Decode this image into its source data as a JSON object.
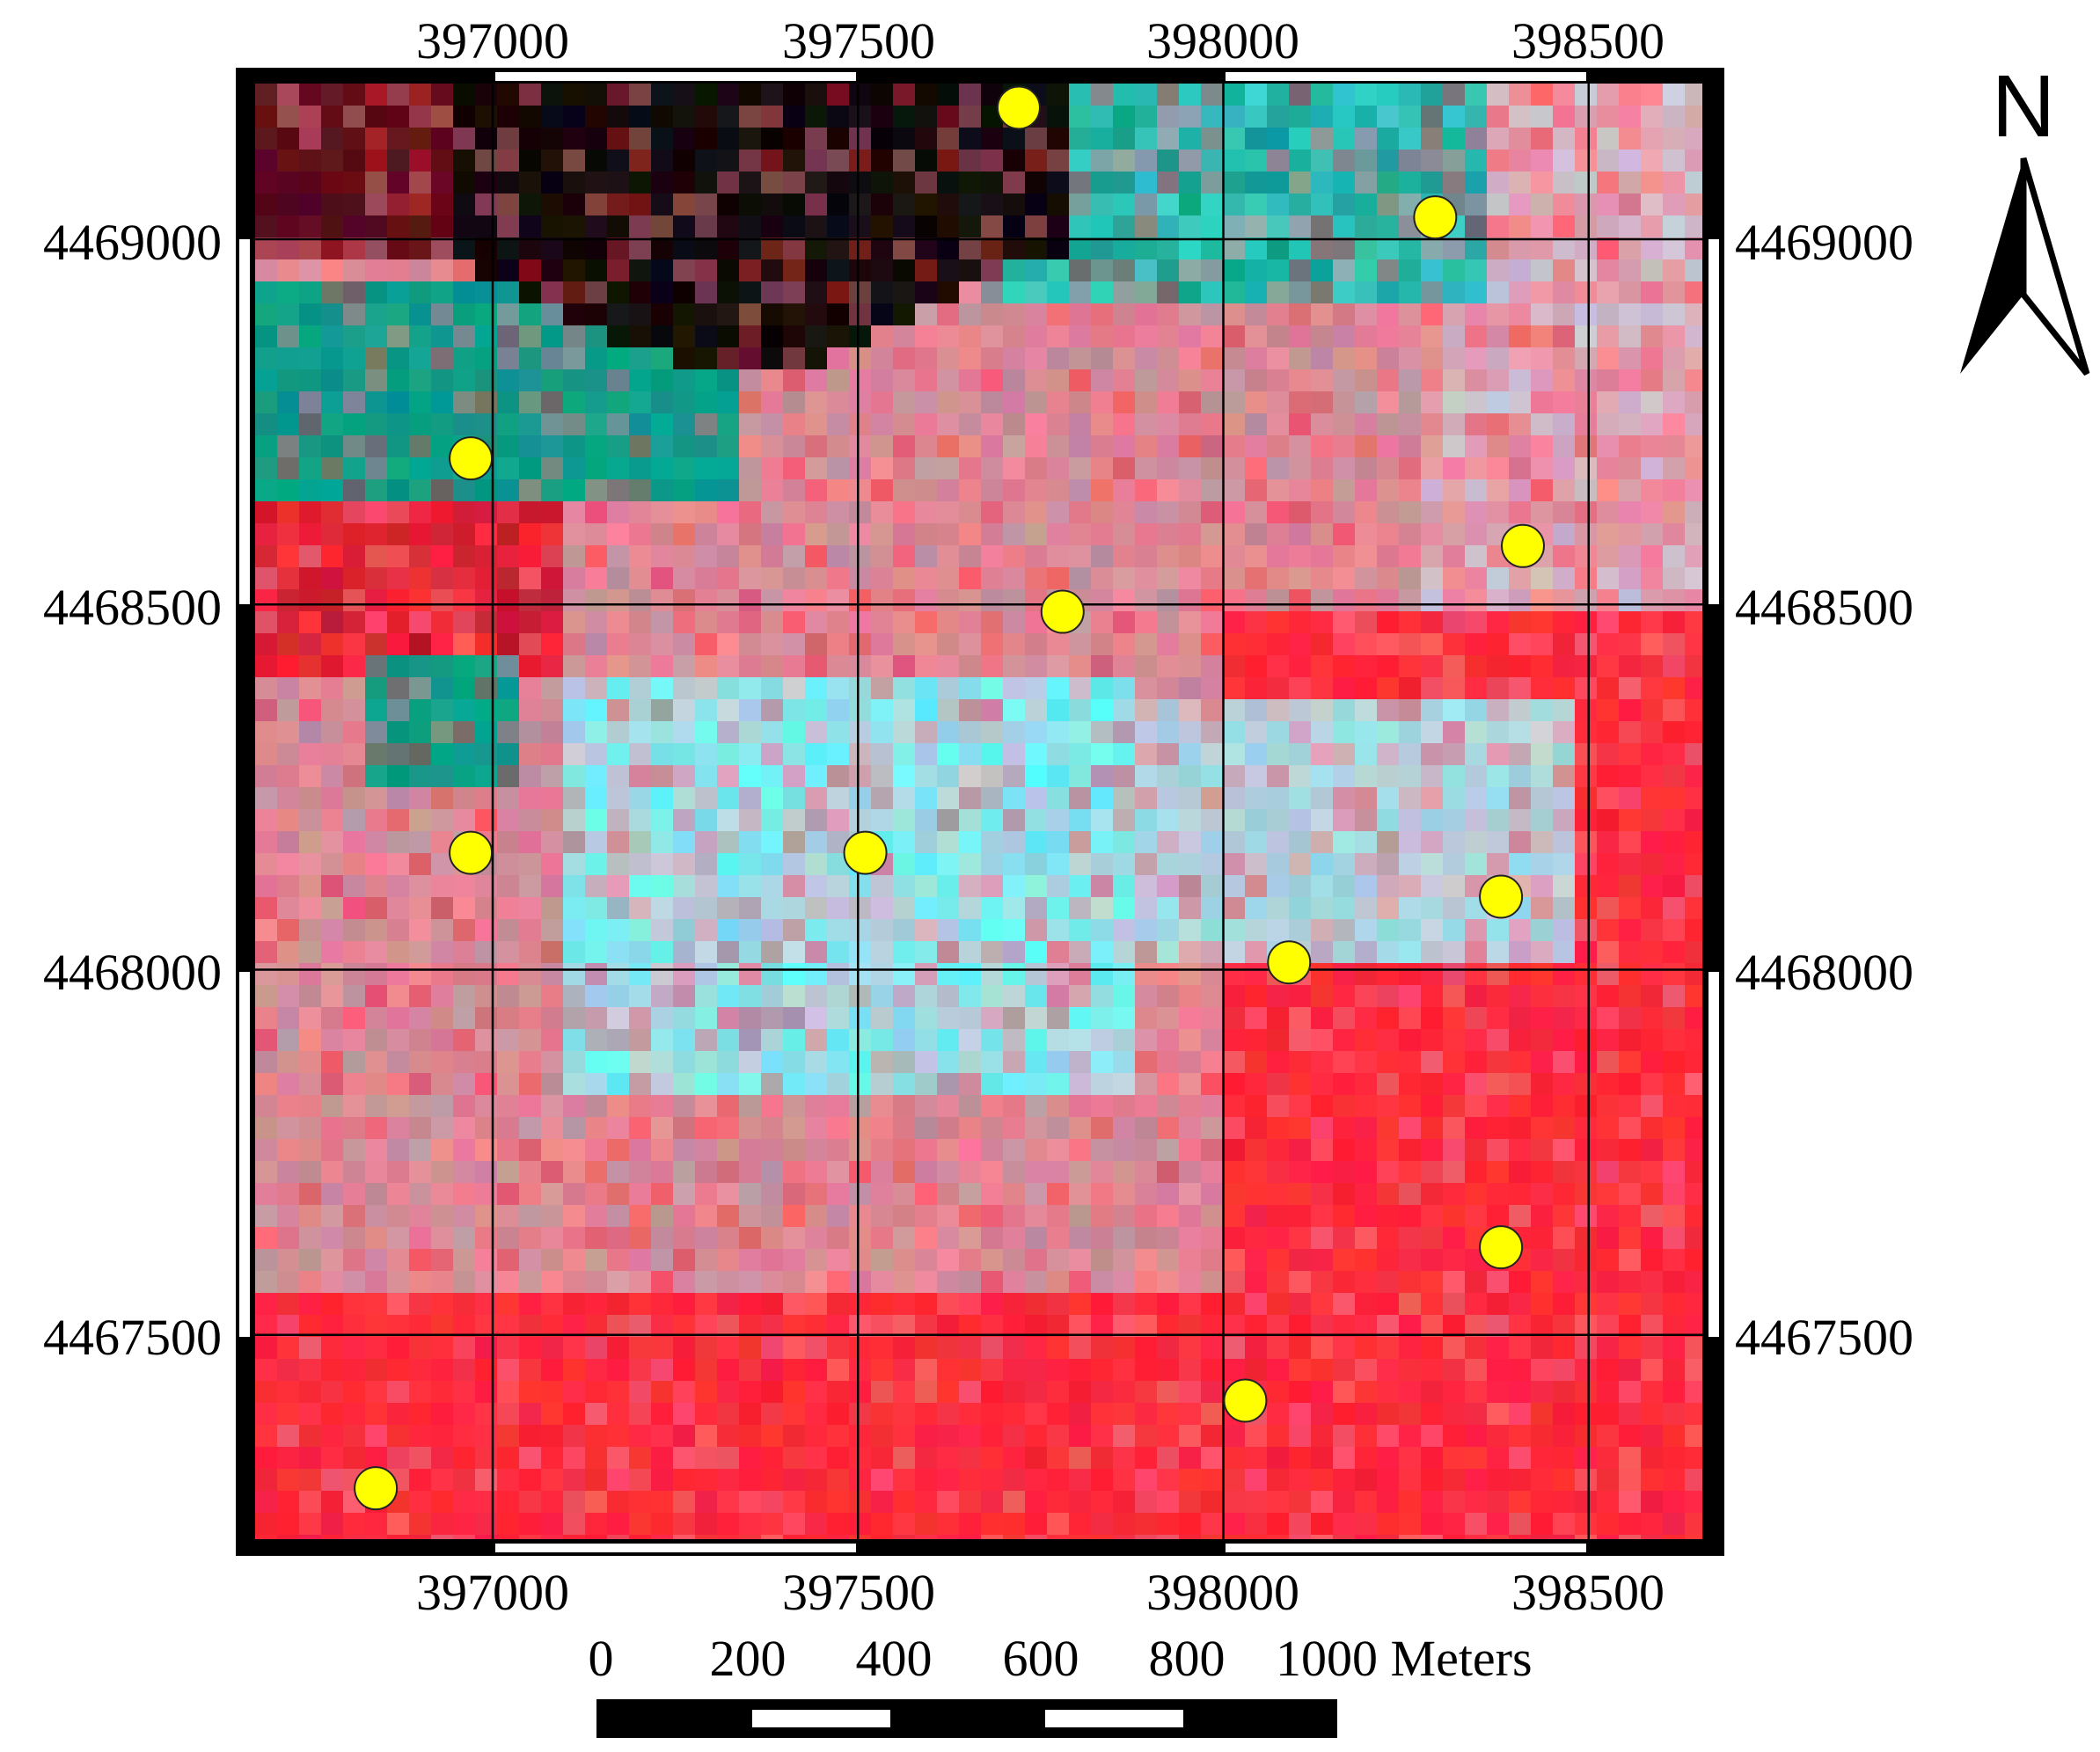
{
  "map": {
    "projection_grid": {
      "x_ticks": [
        "397000",
        "397500",
        "398000",
        "398500"
      ],
      "y_ticks": [
        "4469000",
        "4468500",
        "4468000",
        "4467500"
      ]
    },
    "imagery": {
      "description_colors": {
        "red": "#ff2a3c",
        "cyan": "#5ff6f6",
        "teal": "#0f9c8a",
        "pink": "#f07e90",
        "dark": "#140a0c",
        "maroon": "#8c1428"
      }
    },
    "sample_points": {
      "color": "#ffff00",
      "points": [
        [
          397720,
          4469180
        ],
        [
          398290,
          4469030
        ],
        [
          396970,
          4468700
        ],
        [
          398410,
          4468580
        ],
        [
          397780,
          4468490
        ],
        [
          396970,
          4468160
        ],
        [
          397510,
          4468160
        ],
        [
          398380,
          4468100
        ],
        [
          398090,
          4468010
        ],
        [
          398380,
          4467620
        ],
        [
          398030,
          4467410
        ],
        [
          396840,
          4467290
        ]
      ]
    }
  },
  "north_arrow": {
    "label": "N"
  },
  "scale_bar": {
    "labels": [
      "0",
      "200",
      "400",
      "600",
      "800",
      "1000 Meters"
    ]
  }
}
